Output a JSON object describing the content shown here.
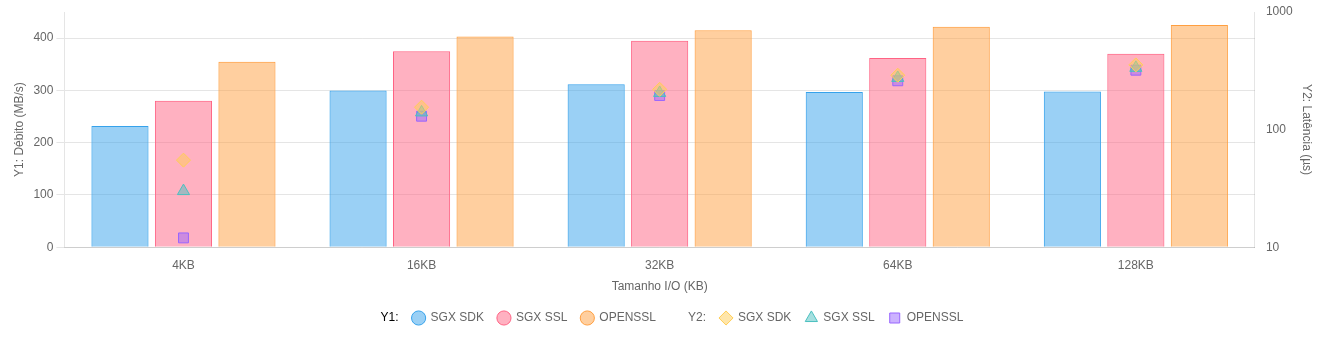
{
  "chart_data": {
    "type": "bar",
    "categories": [
      "4KB",
      "16KB",
      "32KB",
      "64KB",
      "128KB"
    ],
    "xlabel": "Tamanho I/O (KB)",
    "ylabel": "Y1: Débito (MB/s)",
    "y2label": "Y2: Latência (µs)",
    "ylim": [
      0,
      450
    ],
    "yticks": [
      0,
      100,
      200,
      300,
      400
    ],
    "y2lim": [
      10,
      1000
    ],
    "y2ticks": [
      10,
      100,
      1000
    ],
    "log": "y2",
    "grid": true,
    "legend": "bottom",
    "legend_groups": [
      "Y1:",
      "Y2:"
    ],
    "series": [
      {
        "name": "SGX SDK",
        "type": "bar",
        "values": [
          232,
          300,
          312,
          297,
          298
        ]
      },
      {
        "name": "SGX SSL",
        "type": "bar",
        "values": [
          280,
          375,
          395,
          362,
          370
        ]
      },
      {
        "name": "OPENSSL",
        "type": "bar",
        "values": [
          355,
          403,
          415,
          422,
          425
        ]
      },
      {
        "name": "SGX SDK",
        "type": "scatter",
        "axis": "y2",
        "marker": "diamond",
        "values": [
          55,
          155,
          220,
          290,
          355
        ]
      },
      {
        "name": "SGX SSL",
        "type": "scatter",
        "axis": "y2",
        "marker": "triangle",
        "values": [
          30,
          140,
          205,
          275,
          335
        ]
      },
      {
        "name": "OPENSSL",
        "type": "scatter",
        "axis": "y2",
        "marker": "square",
        "values": [
          12,
          130,
          195,
          260,
          320
        ]
      }
    ]
  }
}
